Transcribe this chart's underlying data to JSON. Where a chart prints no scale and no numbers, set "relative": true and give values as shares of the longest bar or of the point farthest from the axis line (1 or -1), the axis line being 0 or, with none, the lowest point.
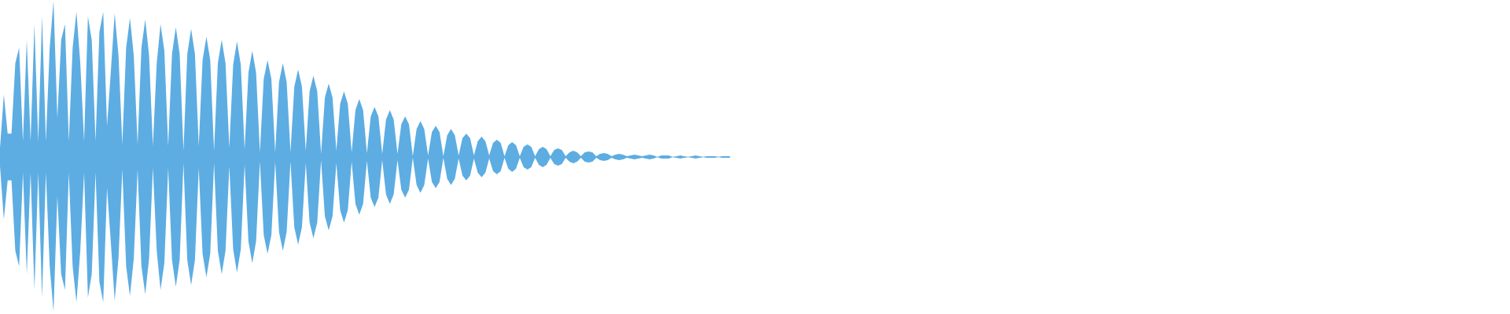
{
  "chart_data": {
    "type": "area",
    "relative": true,
    "categories": [
      null,
      null,
      null,
      null,
      null,
      null,
      null,
      null,
      null,
      null,
      null,
      null,
      null,
      null,
      null,
      null,
      null,
      null,
      null,
      null,
      null,
      null,
      null,
      null,
      null,
      null,
      null,
      null,
      null,
      null,
      null,
      null,
      null,
      null,
      null,
      null,
      null,
      null,
      null,
      null,
      null,
      null,
      null,
      null,
      null,
      null,
      null,
      null,
      null,
      null,
      null,
      null,
      null,
      null,
      null,
      null,
      null,
      null,
      null,
      null,
      null,
      null,
      null,
      null,
      null,
      null,
      null,
      null,
      null,
      null,
      null,
      null,
      null,
      null,
      null,
      null,
      null,
      null,
      null,
      null,
      null,
      null,
      null,
      null,
      null,
      null,
      null,
      null,
      null,
      null,
      null,
      null,
      null,
      null,
      null,
      null,
      null,
      null,
      null,
      null,
      null,
      null,
      null,
      null,
      null,
      null,
      null,
      null,
      null,
      null,
      null,
      null,
      null,
      null,
      null,
      null,
      null,
      null,
      null,
      null,
      null,
      null,
      null,
      null,
      null,
      null,
      null,
      null,
      null,
      null,
      null,
      null,
      null,
      null,
      null,
      null,
      null,
      null,
      null,
      null,
      null,
      null,
      null,
      null,
      null,
      null,
      null,
      null,
      null,
      null,
      null,
      null,
      null,
      null,
      null,
      null,
      null,
      null,
      null,
      null,
      null,
      null,
      null,
      null,
      null,
      null,
      null,
      null,
      null,
      null,
      null,
      null,
      null,
      null,
      null,
      null,
      null,
      null,
      null,
      null,
      null,
      null,
      null,
      null,
      null,
      null,
      null,
      null,
      null,
      null,
      null,
      null
    ],
    "series": [
      {
        "color": "#5dade2",
        "values": [
          0.06,
          0.4,
          0.15,
          0.15,
          0.6,
          0.7,
          0.1,
          0.75,
          0.1,
          0.85,
          0.1,
          0.9,
          0.1,
          0.7,
          1.0,
          0.25,
          0.75,
          0.85,
          0.1,
          0.7,
          0.93,
          0.6,
          0.1,
          0.9,
          0.75,
          0.1,
          0.8,
          0.93,
          0.2,
          0.55,
          0.92,
          0.65,
          0.08,
          0.7,
          0.89,
          0.65,
          0.08,
          0.7,
          0.88,
          0.65,
          0.07,
          0.6,
          0.85,
          0.68,
          0.07,
          0.66,
          0.83,
          0.66,
          0.04,
          0.66,
          0.82,
          0.66,
          0.07,
          0.62,
          0.77,
          0.62,
          0.04,
          0.6,
          0.75,
          0.6,
          0.06,
          0.59,
          0.74,
          0.59,
          0.05,
          0.54,
          0.68,
          0.54,
          0.03,
          0.5,
          0.62,
          0.5,
          0.03,
          0.48,
          0.6,
          0.48,
          0.03,
          0.45,
          0.56,
          0.45,
          0.04,
          0.42,
          0.52,
          0.42,
          0.02,
          0.38,
          0.47,
          0.38,
          0.04,
          0.34,
          0.42,
          0.34,
          0.03,
          0.3,
          0.37,
          0.3,
          0.025,
          0.26,
          0.32,
          0.26,
          0.02,
          0.24,
          0.3,
          0.24,
          0.02,
          0.21,
          0.26,
          0.21,
          0.005,
          0.18,
          0.23,
          0.18,
          0.01,
          0.16,
          0.2,
          0.16,
          0.005,
          0.14,
          0.18,
          0.14,
          0.01,
          0.12,
          0.15,
          0.12,
          0.01,
          0.1,
          0.13,
          0.1,
          0.01,
          0.09,
          0.11,
          0.09,
          0.005,
          0.075,
          0.095,
          0.075,
          0.005,
          0.065,
          0.08,
          0.065,
          0.005,
          0.05,
          0.065,
          0.05,
          0.005,
          0.045,
          0.055,
          0.045,
          0.005,
          0.03,
          0.04,
          0.03,
          0.005,
          0.03,
          0.035,
          0.03,
          0.005,
          0.02,
          0.025,
          0.02,
          0.005,
          0.015,
          0.02,
          0.015,
          0.005,
          0.01,
          0.015,
          0.01,
          0.005,
          0.01,
          0.015,
          0.01,
          0,
          0.01,
          0.01,
          0.01,
          0,
          0.005,
          0.01,
          0.005,
          0,
          0.005,
          0.01,
          0.005,
          0,
          0.005,
          0.005,
          0.005,
          0,
          0.005,
          0.005,
          0.005
        ]
      },
      {
        "color": "#5dade2",
        "values": [
          -0.06,
          -0.4,
          -0.15,
          -0.15,
          -0.6,
          -0.7,
          -0.1,
          -0.75,
          -0.1,
          -0.85,
          -0.1,
          -0.9,
          -0.1,
          -0.7,
          -0.99,
          -0.25,
          -0.75,
          -0.85,
          -0.1,
          -0.7,
          -0.93,
          -0.6,
          -0.1,
          -0.9,
          -0.75,
          -0.1,
          -0.8,
          -0.93,
          -0.2,
          -0.55,
          -0.92,
          -0.65,
          -0.08,
          -0.7,
          -0.89,
          -0.65,
          -0.08,
          -0.7,
          -0.88,
          -0.65,
          -0.07,
          -0.6,
          -0.85,
          -0.68,
          -0.07,
          -0.66,
          -0.83,
          -0.66,
          -0.04,
          -0.66,
          -0.82,
          -0.66,
          -0.07,
          -0.62,
          -0.77,
          -0.62,
          -0.04,
          -0.6,
          -0.75,
          -0.6,
          -0.06,
          -0.59,
          -0.74,
          -0.59,
          -0.05,
          -0.54,
          -0.68,
          -0.54,
          -0.03,
          -0.5,
          -0.62,
          -0.5,
          -0.03,
          -0.48,
          -0.6,
          -0.48,
          -0.03,
          -0.45,
          -0.56,
          -0.45,
          -0.04,
          -0.42,
          -0.52,
          -0.42,
          -0.02,
          -0.38,
          -0.47,
          -0.38,
          -0.04,
          -0.34,
          -0.42,
          -0.34,
          -0.03,
          -0.3,
          -0.37,
          -0.3,
          -0.025,
          -0.26,
          -0.32,
          -0.26,
          -0.02,
          -0.24,
          -0.3,
          -0.24,
          -0.02,
          -0.21,
          -0.26,
          -0.21,
          -0.005,
          -0.18,
          -0.23,
          -0.18,
          -0.01,
          -0.16,
          -0.2,
          -0.16,
          -0.005,
          -0.14,
          -0.18,
          -0.14,
          -0.01,
          -0.12,
          -0.15,
          -0.12,
          -0.01,
          -0.1,
          -0.13,
          -0.1,
          -0.01,
          -0.09,
          -0.11,
          -0.09,
          -0.005,
          -0.075,
          -0.095,
          -0.075,
          -0.005,
          -0.065,
          -0.08,
          -0.065,
          -0.005,
          -0.05,
          -0.065,
          -0.05,
          -0.005,
          -0.045,
          -0.055,
          -0.045,
          -0.005,
          -0.03,
          -0.04,
          -0.03,
          -0.005,
          -0.03,
          -0.035,
          -0.03,
          -0.005,
          -0.02,
          -0.025,
          -0.02,
          -0.005,
          -0.015,
          -0.02,
          -0.015,
          -0.005,
          -0.01,
          -0.015,
          -0.01,
          -0.005,
          -0.01,
          -0.015,
          -0.01,
          0,
          -0.01,
          -0.01,
          -0.01,
          0,
          -0.005,
          -0.01,
          -0.005,
          0,
          -0.005,
          -0.01,
          -0.005,
          0,
          -0.005,
          -0.005,
          -0.005,
          0,
          -0.005,
          -0.005,
          -0.005
        ]
      }
    ]
  }
}
